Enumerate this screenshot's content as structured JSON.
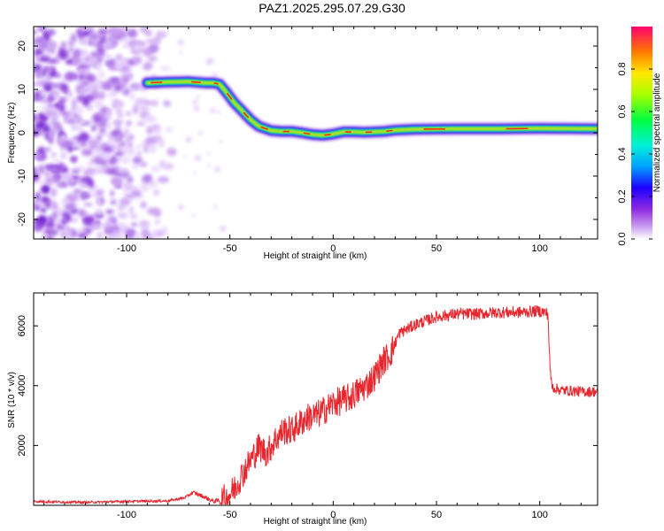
{
  "title": "PAZ1.2025.295.07.29.G30",
  "chart_data": [
    {
      "type": "heatmap",
      "name": "spectrogram",
      "xlabel": "Height of straight line (km)",
      "ylabel": "Frequency (Hz)",
      "xlim": [
        -145,
        128
      ],
      "ylim": [
        -24.5,
        24.5
      ],
      "xticks": [
        -100,
        -50,
        0,
        50,
        100
      ],
      "yticks": [
        -20,
        -10,
        0,
        10,
        20
      ],
      "colorbar": {
        "label": "Normalized spectral amplitude",
        "range": [
          0,
          1
        ],
        "ticks": [
          "0.0",
          "0.2",
          "0.4",
          "0.6",
          "0.8"
        ],
        "tick_values": [
          0.0,
          0.2,
          0.4,
          0.6,
          0.8
        ]
      },
      "noise_region_x": [
        -145,
        -75
      ],
      "signal_trace": {
        "x": [
          -90,
          -80,
          -70,
          -62,
          -58,
          -55,
          -52,
          -48,
          -44,
          -40,
          -36,
          -30,
          -25,
          -20,
          -15,
          -10,
          -5,
          0,
          5,
          10,
          15,
          20,
          25,
          30,
          40,
          60,
          80,
          100,
          128
        ],
        "y": [
          11.5,
          11.7,
          11.8,
          11.5,
          11.5,
          11.2,
          9.5,
          7,
          5,
          3,
          1.5,
          0.5,
          0.3,
          0.3,
          0,
          -0.4,
          -0.6,
          -0.3,
          0.2,
          0.2,
          0.1,
          0.2,
          0.3,
          0.6,
          0.8,
          0.9,
          0.9,
          1.0,
          0.9
        ]
      }
    },
    {
      "type": "line",
      "name": "snr",
      "xlabel": "Height of straight line (km)",
      "ylabel": "SNR (10 * v/v)",
      "xlim": [
        -145,
        128
      ],
      "ylim": [
        0,
        7100
      ],
      "xticks": [
        -100,
        -50,
        0,
        50,
        100
      ],
      "yticks": [
        2000,
        4000,
        6000
      ],
      "color": "#e8262e",
      "series": [
        {
          "name": "SNR",
          "x": [
            -145,
            -120,
            -100,
            -80,
            -72,
            -68,
            -64,
            -58,
            -52,
            -48,
            -44,
            -40,
            -36,
            -32,
            -28,
            -24,
            -20,
            -16,
            -12,
            -8,
            -4,
            0,
            4,
            8,
            12,
            16,
            20,
            24,
            28,
            32,
            36,
            40,
            50,
            60,
            70,
            80,
            90,
            100,
            104,
            105,
            106,
            110,
            120,
            128
          ],
          "y": [
            130,
            100,
            130,
            150,
            250,
            430,
            330,
            130,
            220,
            540,
            1050,
            1500,
            1950,
            1750,
            2200,
            2500,
            2500,
            2750,
            2950,
            3000,
            3200,
            3400,
            3500,
            3600,
            3800,
            4000,
            4300,
            4800,
            5100,
            5750,
            5900,
            6050,
            6300,
            6400,
            6400,
            6450,
            6450,
            6500,
            6400,
            4500,
            3950,
            3850,
            3800,
            3800
          ]
        }
      ]
    }
  ]
}
